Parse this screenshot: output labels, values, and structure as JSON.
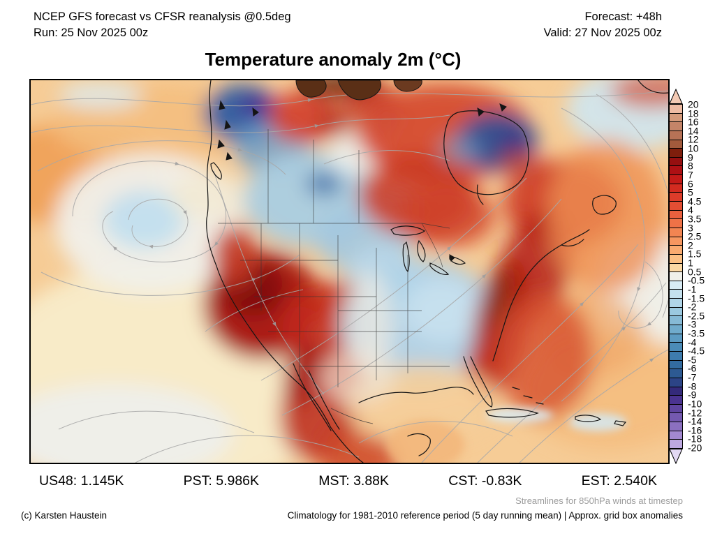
{
  "header": {
    "product_line": "NCEP GFS forecast vs CFSR reanalysis @0.5deg",
    "run_line": "Run: 25 Nov 2025 00z",
    "forecast_line": "Forecast: +48h",
    "valid_line": "Valid: 27 Nov 2025 00z"
  },
  "title": "Temperature anomaly 2m (°C)",
  "stats": [
    {
      "text": "US48: 1.145K"
    },
    {
      "text": "PST: 5.986K"
    },
    {
      "text": "MST: 3.88K"
    },
    {
      "text": "CST: -0.83K"
    },
    {
      "text": "EST: 2.540K"
    }
  ],
  "footer": {
    "streamlines_note": "Streamlines for 850hPa winds at timestep",
    "copyright": "(c) Karsten Haustein",
    "climatology_note": "Climatology for 1981-2010 reference period (5 day running mean) | Approx. grid box anomalies"
  },
  "colorbar": {
    "arrow_top_color": "#F4CAB4",
    "arrow_bottom_color": "#E2D8F4",
    "boundary_labels": [
      "20",
      "18",
      "16",
      "14",
      "12",
      "10",
      "9",
      "8",
      "7",
      "6",
      "5",
      "4.5",
      "4",
      "3.5",
      "3",
      "2.5",
      "2",
      "1.5",
      "1",
      "0.5",
      "-0.5",
      "-1",
      "-1.5",
      "-2",
      "-2.5",
      "-3",
      "-3.5",
      "-4",
      "-4.5",
      "-5",
      "-6",
      "-7",
      "-8",
      "-9",
      "-10",
      "-12",
      "-14",
      "-16",
      "-18",
      "-20"
    ],
    "segment_colors": [
      "#EFBCA4",
      "#D59B7C",
      "#C48468",
      "#B77256",
      "#A25A3C",
      "#7E1E0C",
      "#960F10",
      "#AE1014",
      "#C41A18",
      "#D32B20",
      "#DD3C2A",
      "#E34E33",
      "#EA603E",
      "#EF7247",
      "#F28552",
      "#F69760",
      "#F9AB70",
      "#FBC084",
      "#FBD8A4",
      "#F0F0EA",
      "#D8EBF4",
      "#C5E1EE",
      "#B0D5E8",
      "#9BC9E0",
      "#86BAD6",
      "#70ABCC",
      "#5C9BC2",
      "#4B8CB8",
      "#3E7CAE",
      "#336CA0",
      "#2D5A92",
      "#2C4486",
      "#342A7A",
      "#4A3390",
      "#5F45A0",
      "#7459B0",
      "#8B70C0",
      "#A288D0",
      "#BDA8E0"
    ]
  }
}
